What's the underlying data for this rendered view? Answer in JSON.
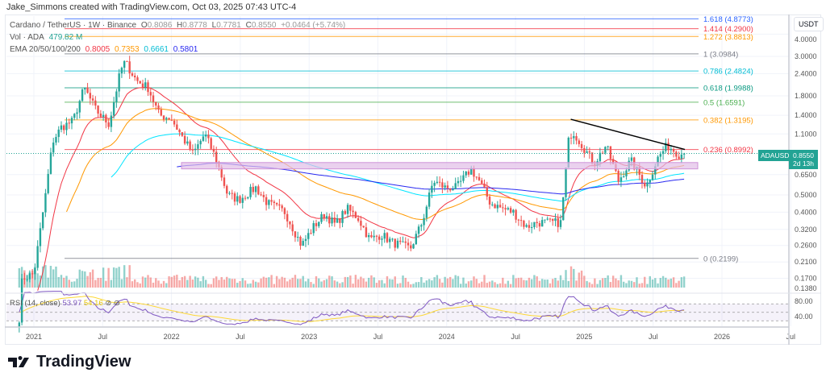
{
  "header": {
    "credit": "Jake_Simmons created with TradingView.com, Oct 03, 2025 07:43 UTC-4"
  },
  "legend": {
    "symbol": "Cardano / TetherUS · 1W · Binance",
    "o_label": "O",
    "o": "0.8086",
    "h_label": "H",
    "h": "0.8778",
    "l_label": "L",
    "l": "0.7781",
    "c_label": "C",
    "c": "0.8550",
    "change": "+0.0464 (+5.74%)",
    "vol_label": "Vol · ADA",
    "vol": "479.82 M",
    "ema_label": "EMA 20/50/100/200",
    "ema20": "0.8005",
    "ema50": "0.7353",
    "ema100": "0.6661",
    "ema200": "0.5801"
  },
  "colors": {
    "up": "#26a69a",
    "down": "#ef5350",
    "ema20": "#f23645",
    "ema50": "#ff9800",
    "ema100": "#00e5ff",
    "ema200": "#2929f0",
    "rsi": "#7e57c2",
    "rsi_ma": "#fdd835",
    "box": "#ce93d8"
  },
  "price_axis": {
    "unit": "USDT",
    "scale": "log",
    "ticks": [
      "4.0000",
      "3.0000",
      "2.4000",
      "1.8000",
      "1.4000",
      "1.1000",
      "0.6500",
      "0.5000",
      "0.4000",
      "0.3200",
      "0.2600",
      "0.2100",
      "0.1700",
      "0.1380"
    ]
  },
  "rsi": {
    "label": "RSI (14, close)",
    "value": "53.97",
    "ma_value": "54.16",
    "ticks": [
      "80.00",
      "40.00"
    ]
  },
  "time_axis": [
    "2021",
    "Jul",
    "2022",
    "Jul",
    "2023",
    "Jul",
    "2024",
    "Jul",
    "2025",
    "Jul",
    "2026",
    "Jul"
  ],
  "price_tag": {
    "symbol": "ADAUSDT",
    "price": "0.8550",
    "countdown": "2d 13h"
  },
  "fib_levels": [
    {
      "label": "1.618 (4.8773)",
      "ratio": 1.618,
      "price": 4.8773,
      "color": "#2962ff"
    },
    {
      "label": "1.414 (4.2900)",
      "ratio": 1.414,
      "price": 4.29,
      "color": "#f23645"
    },
    {
      "label": "1.272 (3.8813)",
      "ratio": 1.272,
      "price": 3.8813,
      "color": "#ff9800"
    },
    {
      "label": "1 (3.0984)",
      "ratio": 1,
      "price": 3.0984,
      "color": "#787b86"
    },
    {
      "label": "0.786 (2.4824)",
      "ratio": 0.786,
      "price": 2.4824,
      "color": "#00bcd4"
    },
    {
      "label": "0.618 (1.9988)",
      "ratio": 0.618,
      "price": 1.9988,
      "color": "#089981"
    },
    {
      "label": "0.5 (1.6591)",
      "ratio": 0.5,
      "price": 1.6591,
      "color": "#4caf50"
    },
    {
      "label": "0.382 (1.3195)",
      "ratio": 0.382,
      "price": 1.3195,
      "color": "#ff9800"
    },
    {
      "label": "0.236 (0.8992)",
      "ratio": 0.236,
      "price": 0.8992,
      "color": "#f23645"
    },
    {
      "label": "0 (0.2199)",
      "ratio": 0,
      "price": 0.2199,
      "color": "#787b86"
    }
  ],
  "logo": "TradingView",
  "chart_data": {
    "type": "candlestick",
    "title": "Cardano / TetherUS · 1W · Binance",
    "ylabel": "USDT",
    "yscale": "log",
    "ylim": [
      0.13,
      5.0
    ],
    "xlim": [
      "2020-11-20",
      "2026-09-01"
    ],
    "support_zone": [
      0.7,
      0.76
    ],
    "trendline": [
      [
        "2024-12-01",
        1.33
      ],
      [
        "2025-10-01",
        0.9
      ]
    ],
    "close_path": [
      [
        "2020-12-01",
        0.17
      ],
      [
        "2021-01-01",
        0.18
      ],
      [
        "2021-02-01",
        0.5
      ],
      [
        "2021-02-20",
        1.0
      ],
      [
        "2021-03-15",
        1.2
      ],
      [
        "2021-04-15",
        1.3
      ],
      [
        "2021-05-15",
        2.0
      ],
      [
        "2021-06-15",
        1.5
      ],
      [
        "2021-07-20",
        1.25
      ],
      [
        "2021-08-20",
        2.5
      ],
      [
        "2021-09-01",
        2.8
      ],
      [
        "2021-10-01",
        2.2
      ],
      [
        "2021-11-01",
        2.0
      ],
      [
        "2021-12-01",
        1.4
      ],
      [
        "2022-01-01",
        1.35
      ],
      [
        "2022-02-01",
        1.05
      ],
      [
        "2022-03-01",
        0.85
      ],
      [
        "2022-04-01",
        1.1
      ],
      [
        "2022-05-01",
        0.8
      ],
      [
        "2022-06-01",
        0.5
      ],
      [
        "2022-07-01",
        0.47
      ],
      [
        "2022-08-15",
        0.55
      ],
      [
        "2022-09-15",
        0.45
      ],
      [
        "2022-11-01",
        0.4
      ],
      [
        "2022-12-15",
        0.26
      ],
      [
        "2023-01-15",
        0.33
      ],
      [
        "2023-02-15",
        0.39
      ],
      [
        "2023-03-15",
        0.34
      ],
      [
        "2023-04-15",
        0.42
      ],
      [
        "2023-05-15",
        0.37
      ],
      [
        "2023-06-15",
        0.28
      ],
      [
        "2023-07-15",
        0.3
      ],
      [
        "2023-08-15",
        0.27
      ],
      [
        "2023-10-01",
        0.25
      ],
      [
        "2023-11-01",
        0.35
      ],
      [
        "2023-12-01",
        0.6
      ],
      [
        "2024-01-01",
        0.55
      ],
      [
        "2024-02-01",
        0.55
      ],
      [
        "2024-03-10",
        0.7
      ],
      [
        "2024-04-01",
        0.6
      ],
      [
        "2024-05-01",
        0.45
      ],
      [
        "2024-06-01",
        0.42
      ],
      [
        "2024-07-01",
        0.4
      ],
      [
        "2024-08-05",
        0.33
      ],
      [
        "2024-09-01",
        0.35
      ],
      [
        "2024-10-01",
        0.35
      ],
      [
        "2024-11-05",
        0.35
      ],
      [
        "2024-11-25",
        1.0
      ],
      [
        "2024-12-05",
        1.15
      ],
      [
        "2025-01-01",
        0.95
      ],
      [
        "2025-02-01",
        0.75
      ],
      [
        "2025-03-05",
        0.95
      ],
      [
        "2025-04-07",
        0.6
      ],
      [
        "2025-05-10",
        0.78
      ],
      [
        "2025-06-20",
        0.56
      ],
      [
        "2025-07-20",
        0.8
      ],
      [
        "2025-08-15",
        0.95
      ],
      [
        "2025-09-15",
        0.85
      ],
      [
        "2025-10-03",
        0.855
      ]
    ]
  }
}
